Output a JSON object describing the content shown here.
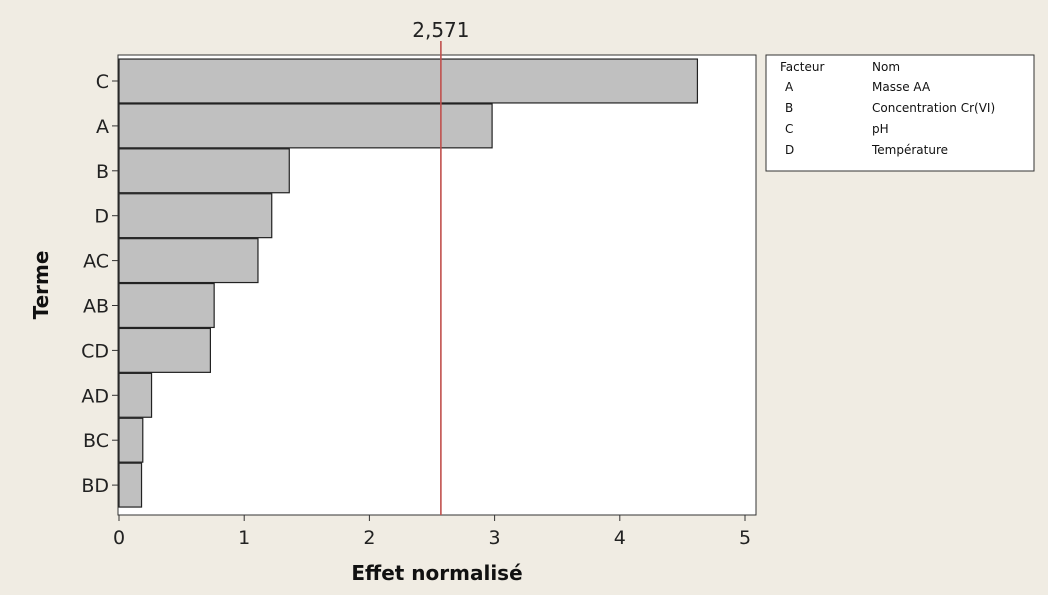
{
  "chart_data": {
    "type": "bar",
    "orientation": "horizontal",
    "categories": [
      "C",
      "A",
      "B",
      "D",
      "AC",
      "AB",
      "CD",
      "AD",
      "BC",
      "BD"
    ],
    "values": [
      4.62,
      2.98,
      1.36,
      1.22,
      1.11,
      0.76,
      0.73,
      0.26,
      0.19,
      0.18
    ],
    "xlabel": "Effet normalisé",
    "ylabel": "Terme",
    "xlim": [
      0,
      5.1
    ],
    "x_ticks": [
      "0",
      "1",
      "2",
      "3",
      "4",
      "5"
    ],
    "reference_line": {
      "value": 2.571,
      "label": "2,571",
      "color": "#c0504d"
    },
    "bar_color": "#c0c0c0",
    "grid": false,
    "legend": {
      "placement": "top-right",
      "header": {
        "factor": "Facteur",
        "name": "Nom"
      },
      "rows": [
        {
          "factor": "A",
          "name": "Masse AA"
        },
        {
          "factor": "B",
          "name": "Concentration Cr(VI)"
        },
        {
          "factor": "C",
          "name": "pH"
        },
        {
          "factor": "D",
          "name": "Température"
        }
      ]
    }
  }
}
